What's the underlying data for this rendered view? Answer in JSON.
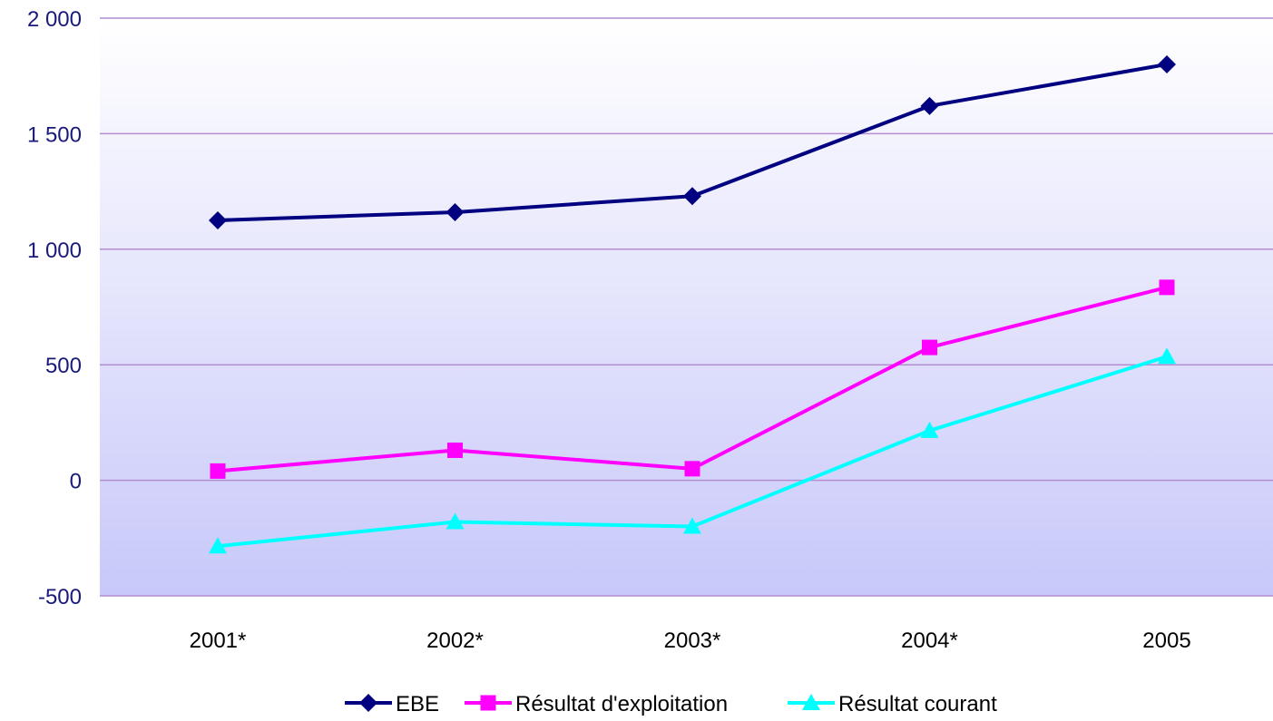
{
  "chart_data": {
    "type": "line",
    "categories": [
      "2001*",
      "2002*",
      "2003*",
      "2004*",
      "2005"
    ],
    "ylim": [
      -500,
      2000
    ],
    "y_ticks": [
      {
        "value": 2000,
        "label": "2 000"
      },
      {
        "value": 1500,
        "label": "1 500"
      },
      {
        "value": 1000,
        "label": "1 000"
      },
      {
        "value": 500,
        "label": "500"
      },
      {
        "value": 0,
        "label": "0"
      },
      {
        "value": -500,
        "label": "-500"
      }
    ],
    "grid": true,
    "legend_position": "bottom",
    "series": [
      {
        "name": "EBE",
        "values": [
          1125,
          1160,
          1230,
          1620,
          1800
        ],
        "color": "#000080",
        "marker": "diamond"
      },
      {
        "name": "Résultat d'exploitation",
        "values": [
          40,
          130,
          50,
          575,
          835
        ],
        "color": "#FF00FF",
        "marker": "square"
      },
      {
        "name": "Résultat courant",
        "values": [
          -285,
          -180,
          -200,
          215,
          535
        ],
        "color": "#00FFFF",
        "marker": "triangle"
      }
    ],
    "colors": {
      "gridline": "#B48CD2",
      "tick_text": "#1A1A7A",
      "category_text": "#000000",
      "plot_bg_top": "#FFFFFF",
      "plot_bg_bottom": "#C8C8FA"
    }
  }
}
